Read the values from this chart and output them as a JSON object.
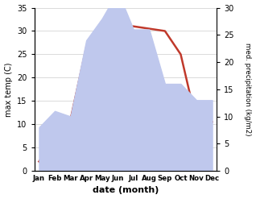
{
  "months": [
    "Jan",
    "Feb",
    "Mar",
    "Apr",
    "May",
    "Jun",
    "Jul",
    "Aug",
    "Sep",
    "Oct",
    "Nov",
    "Dec"
  ],
  "max_temp": [
    2,
    7,
    11,
    26.5,
    24,
    31,
    31,
    30.5,
    30,
    25,
    10.5,
    10.5
  ],
  "precipitation": [
    8,
    11,
    10,
    24,
    28,
    33,
    26,
    26,
    16,
    16,
    13,
    13
  ],
  "temp_color": "#c0392b",
  "precip_fill_color": "#bfc8ed",
  "temp_ylim": [
    0,
    35
  ],
  "precip_ylim": [
    0,
    30
  ],
  "xlabel": "date (month)",
  "ylabel_left": "max temp (C)",
  "ylabel_right": "med. precipitation (kg/m2)",
  "background_color": "#ffffff",
  "grid_color": "#cccccc"
}
